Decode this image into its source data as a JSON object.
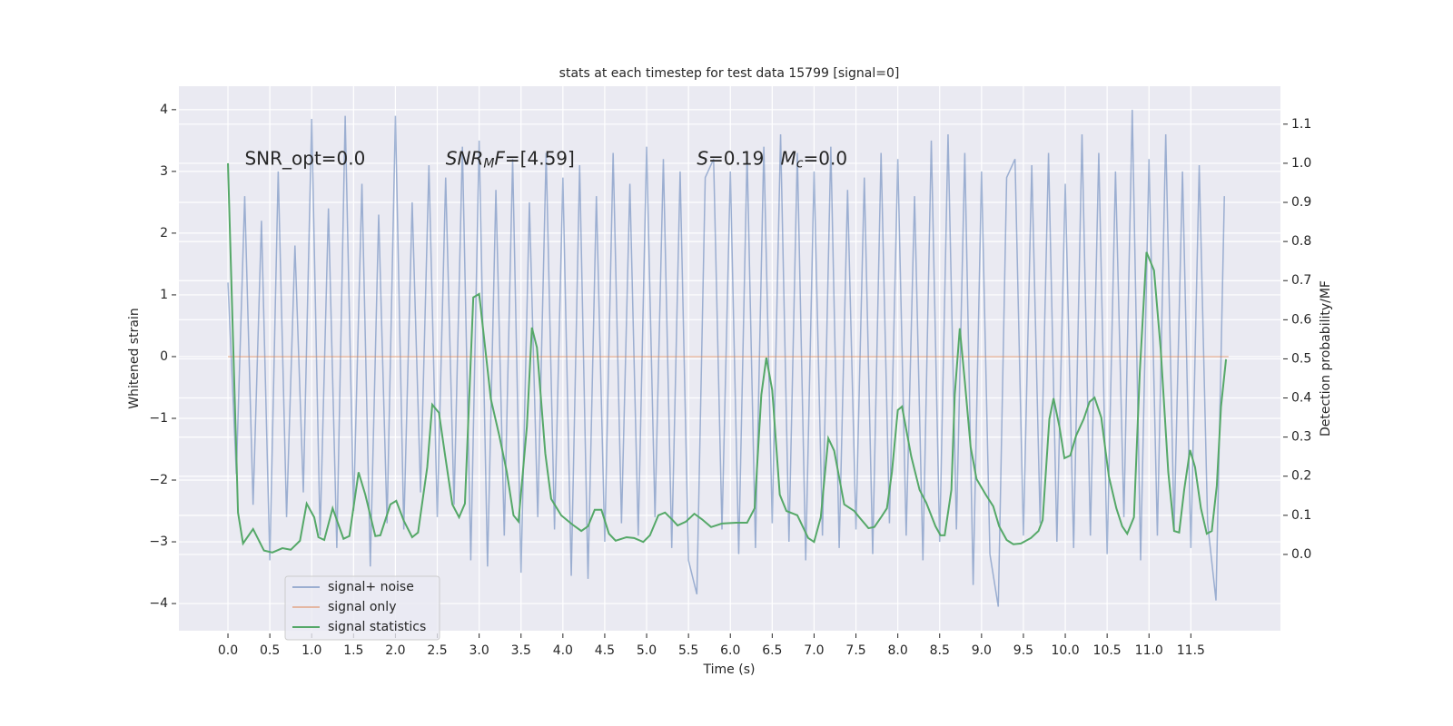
{
  "chart_data": {
    "type": "line",
    "title": "stats at each timestep for test data 15799 [signal=0]",
    "x_label": "Time (s)",
    "y_label": "Whitened strain",
    "y2_label": "Detection probability/MF",
    "xlim": [
      -0.586,
      12.57
    ],
    "ylim": [
      -4.44,
      4.38
    ],
    "y2lim": [
      -0.195,
      1.197
    ],
    "xticks": [
      {
        "value": 0,
        "label": "0.0"
      },
      {
        "value": 0.5,
        "label": "0.5"
      },
      {
        "value": 1,
        "label": "1.0"
      },
      {
        "value": 1.5,
        "label": "1.5"
      },
      {
        "value": 2,
        "label": "2.0"
      },
      {
        "value": 2.5,
        "label": "2.5"
      },
      {
        "value": 3,
        "label": "3.0"
      },
      {
        "value": 3.5,
        "label": "3.5"
      },
      {
        "value": 4,
        "label": "4.0"
      },
      {
        "value": 4.5,
        "label": "4.5"
      },
      {
        "value": 5,
        "label": "5.0"
      },
      {
        "value": 5.5,
        "label": "5.5"
      },
      {
        "value": 6,
        "label": "6.0"
      },
      {
        "value": 6.5,
        "label": "6.5"
      },
      {
        "value": 7,
        "label": "7.0"
      },
      {
        "value": 7.5,
        "label": "7.5"
      },
      {
        "value": 8,
        "label": "8.0"
      },
      {
        "value": 8.5,
        "label": "8.5"
      },
      {
        "value": 9,
        "label": "9.0"
      },
      {
        "value": 9.5,
        "label": "9.5"
      },
      {
        "value": 10,
        "label": "10.0"
      },
      {
        "value": 10.5,
        "label": "10.5"
      },
      {
        "value": 11,
        "label": "11.0"
      },
      {
        "value": 11.5,
        "label": "11.5"
      }
    ],
    "yticks": [
      {
        "value": -4,
        "label": "−4"
      },
      {
        "value": -3,
        "label": "−3"
      },
      {
        "value": -2,
        "label": "−2"
      },
      {
        "value": -1,
        "label": "−1"
      },
      0,
      1,
      2,
      3,
      4
    ],
    "y2ticks": [
      {
        "value": 0,
        "label": "0.0"
      },
      {
        "value": 0.1,
        "label": "0.1"
      },
      {
        "value": 0.2,
        "label": "0.2"
      },
      {
        "value": 0.3,
        "label": "0.3"
      },
      {
        "value": 0.4,
        "label": "0.4"
      },
      {
        "value": 0.5,
        "label": "0.5"
      },
      {
        "value": 0.6,
        "label": "0.6"
      },
      {
        "value": 0.7,
        "label": "0.7"
      },
      {
        "value": 0.8,
        "label": "0.8"
      },
      {
        "value": 0.9,
        "label": "0.9"
      },
      {
        "value": 1,
        "label": "1.0"
      },
      {
        "value": 1.1,
        "label": "1.1"
      }
    ],
    "grid": true,
    "legend": "lower left",
    "annotations": [
      {
        "x": 0.2,
        "y": 3.2,
        "parts": [
          {
            "text": "SNR_opt=0.0"
          }
        ]
      },
      {
        "x": 2.6,
        "y": 3.2,
        "parts": [
          {
            "text": "SNR",
            "italic": true
          },
          {
            "text": "M",
            "italic": true,
            "sub": true
          },
          {
            "text": "F",
            "italic": true
          },
          {
            "text": "=[4.59]"
          }
        ]
      },
      {
        "x": 5.6,
        "y": 3.2,
        "parts": [
          {
            "text": "S",
            "italic": true
          },
          {
            "text": "=0.19"
          }
        ]
      },
      {
        "x": 6.6,
        "y": 3.2,
        "parts": [
          {
            "text": "M",
            "italic": true
          },
          {
            "text": "c",
            "italic": true,
            "sub": true
          },
          {
            "text": "=0.0"
          }
        ]
      }
    ],
    "series": [
      {
        "name": "signal+ noise",
        "color": "#4c72b0",
        "opacity": 0.5,
        "x": [
          0.0,
          0.1,
          0.2,
          0.3,
          0.4,
          0.5,
          0.6,
          0.7,
          0.8,
          0.9,
          1.0,
          1.1,
          1.2,
          1.3,
          1.4,
          1.5,
          1.6,
          1.7,
          1.8,
          1.9,
          2.0,
          2.1,
          2.2,
          2.3,
          2.4,
          2.5,
          2.6,
          2.7,
          2.8,
          2.9,
          3.0,
          3.1,
          3.2,
          3.3,
          3.4,
          3.5,
          3.6,
          3.7,
          3.8,
          3.9,
          4.0,
          4.1,
          4.2,
          4.3,
          4.4,
          4.5,
          4.6,
          4.7,
          4.8,
          4.9,
          5.0,
          5.1,
          5.2,
          5.3,
          5.4,
          5.5,
          5.6,
          5.7,
          5.8,
          5.9,
          6.0,
          6.1,
          6.2,
          6.3,
          6.4,
          6.5,
          6.6,
          6.7,
          6.8,
          6.9,
          7.0,
          7.1,
          7.2,
          7.3,
          7.4,
          7.5,
          7.6,
          7.7,
          7.8,
          7.9,
          8.0,
          8.1,
          8.2,
          8.3,
          8.4,
          8.5,
          8.6,
          8.7,
          8.8,
          8.9,
          9.0,
          9.1,
          9.2,
          9.3,
          9.4,
          9.5,
          9.6,
          9.7,
          9.8,
          9.9,
          10.0,
          10.1,
          10.2,
          10.3,
          10.4,
          10.5,
          10.6,
          10.7,
          10.8,
          10.9,
          11.0,
          11.1,
          11.2,
          11.3,
          11.4,
          11.5,
          11.6,
          11.7,
          11.8,
          11.9
        ],
        "values": [
          1.2,
          -1.9,
          2.6,
          -2.4,
          2.2,
          -3.3,
          3.0,
          -2.6,
          1.8,
          -2.2,
          3.85,
          -2.9,
          2.4,
          -3.1,
          3.9,
          -2.5,
          2.8,
          -3.4,
          2.3,
          -2.7,
          3.9,
          -2.8,
          2.5,
          -2.2,
          3.1,
          -2.6,
          2.9,
          -2.4,
          3.4,
          -3.3,
          3.5,
          -3.4,
          2.7,
          -2.9,
          3.2,
          -3.5,
          2.5,
          -2.6,
          3.3,
          -2.8,
          2.9,
          -3.55,
          3.1,
          -3.6,
          2.6,
          -3.0,
          3.3,
          -2.7,
          2.8,
          -2.9,
          3.4,
          -2.6,
          3.2,
          -3.1,
          3.0,
          -3.3,
          -3.85,
          2.9,
          3.2,
          -2.8,
          3.0,
          -3.2,
          3.3,
          -3.1,
          3.4,
          -2.7,
          3.6,
          -3.0,
          3.3,
          -3.3,
          3.0,
          -2.9,
          3.4,
          -3.1,
          2.7,
          -2.8,
          2.9,
          -3.2,
          3.3,
          -2.7,
          3.2,
          -2.9,
          2.6,
          -3.3,
          3.5,
          -3.0,
          3.6,
          -2.8,
          3.3,
          -3.7,
          3.0,
          -3.2,
          -4.05,
          2.9,
          3.2,
          -2.9,
          3.1,
          -2.7,
          3.3,
          -3.0,
          2.8,
          -3.1,
          3.6,
          -2.9,
          3.3,
          -3.2,
          3.0,
          -2.6,
          4.0,
          -3.3,
          3.2,
          -2.9,
          3.6,
          -2.8,
          3.0,
          -3.1,
          3.1,
          -2.7,
          -3.95,
          2.6
        ]
      },
      {
        "name": "signal only",
        "color": "#dd8452",
        "opacity": 0.5,
        "x": [
          0.0,
          11.95
        ],
        "values": [
          0,
          0
        ]
      },
      {
        "name": "signal statistics",
        "color": "#55a868",
        "axis": "y2",
        "x": [
          0,
          0.12,
          0.18,
          0.3,
          0.43,
          0.53,
          0.65,
          0.75,
          0.86,
          0.94,
          1.03,
          1.08,
          1.15,
          1.25,
          1.38,
          1.45,
          1.56,
          1.64,
          1.76,
          1.82,
          1.94,
          2.01,
          2.1,
          2.2,
          2.27,
          2.38,
          2.44,
          2.52,
          2.59,
          2.68,
          2.76,
          2.83,
          2.93,
          3.0,
          3.14,
          3.24,
          3.33,
          3.41,
          3.47,
          3.57,
          3.63,
          3.69,
          3.79,
          3.86,
          3.98,
          4.11,
          4.22,
          4.3,
          4.38,
          4.46,
          4.55,
          4.63,
          4.76,
          4.85,
          4.96,
          5.04,
          5.14,
          5.22,
          5.31,
          5.37,
          5.47,
          5.57,
          5.66,
          5.77,
          5.9,
          6.07,
          6.2,
          6.29,
          6.37,
          6.43,
          6.5,
          6.59,
          6.67,
          6.8,
          6.93,
          7.0,
          7.08,
          7.17,
          7.24,
          7.36,
          7.48,
          7.54,
          7.65,
          7.72,
          7.8,
          7.87,
          7.93,
          8.0,
          8.05,
          8.16,
          8.26,
          8.34,
          8.45,
          8.51,
          8.56,
          8.64,
          8.68,
          8.74,
          8.8,
          8.87,
          8.94,
          9.05,
          9.14,
          9.21,
          9.3,
          9.38,
          9.47,
          9.59,
          9.68,
          9.73,
          9.81,
          9.86,
          9.93,
          9.99,
          10.06,
          10.13,
          10.22,
          10.29,
          10.35,
          10.43,
          10.52,
          10.61,
          10.68,
          10.74,
          10.82,
          10.89,
          10.97,
          11.06,
          11.14,
          11.23,
          11.3,
          11.36,
          11.42,
          11.49,
          11.55,
          11.62,
          11.69,
          11.75,
          11.81,
          11.86,
          11.92
        ],
        "values": [
          1.0,
          0.107,
          0.028,
          0.065,
          0.01,
          0.005,
          0.016,
          0.012,
          0.035,
          0.13,
          0.095,
          0.044,
          0.037,
          0.118,
          0.04,
          0.047,
          0.21,
          0.153,
          0.047,
          0.049,
          0.128,
          0.137,
          0.086,
          0.044,
          0.056,
          0.223,
          0.383,
          0.362,
          0.258,
          0.128,
          0.095,
          0.13,
          0.657,
          0.666,
          0.397,
          0.304,
          0.211,
          0.1,
          0.084,
          0.327,
          0.58,
          0.529,
          0.258,
          0.142,
          0.1,
          0.077,
          0.06,
          0.072,
          0.114,
          0.114,
          0.053,
          0.035,
          0.044,
          0.042,
          0.032,
          0.049,
          0.1,
          0.107,
          0.088,
          0.074,
          0.084,
          0.104,
          0.09,
          0.07,
          0.079,
          0.081,
          0.081,
          0.118,
          0.408,
          0.503,
          0.42,
          0.153,
          0.111,
          0.1,
          0.042,
          0.032,
          0.095,
          0.297,
          0.265,
          0.128,
          0.111,
          0.095,
          0.067,
          0.07,
          0.095,
          0.118,
          0.211,
          0.369,
          0.378,
          0.251,
          0.165,
          0.132,
          0.072,
          0.049,
          0.049,
          0.165,
          0.408,
          0.578,
          0.443,
          0.274,
          0.193,
          0.153,
          0.123,
          0.072,
          0.037,
          0.026,
          0.028,
          0.042,
          0.06,
          0.088,
          0.346,
          0.399,
          0.327,
          0.246,
          0.253,
          0.304,
          0.346,
          0.39,
          0.401,
          0.35,
          0.2,
          0.118,
          0.072,
          0.053,
          0.095,
          0.466,
          0.773,
          0.726,
          0.524,
          0.211,
          0.06,
          0.056,
          0.165,
          0.267,
          0.223,
          0.118,
          0.053,
          0.06,
          0.176,
          0.378,
          0.499
        ]
      }
    ]
  }
}
